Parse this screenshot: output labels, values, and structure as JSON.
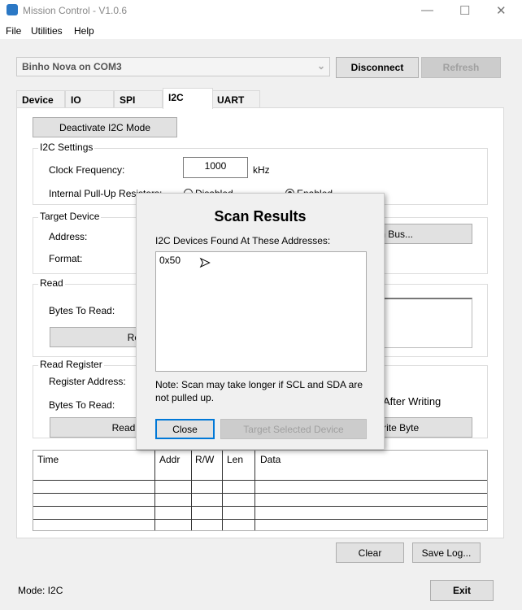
{
  "window": {
    "title": "Mission Control - V1.0.6",
    "icon": "app-robot-icon"
  },
  "menu": [
    "File",
    "Utilities",
    "Help"
  ],
  "device_combo": {
    "value": "Binho Nova on COM3"
  },
  "toolbar": {
    "disconnect": "Disconnect",
    "refresh": "Refresh"
  },
  "tabs": [
    "Device",
    "IO",
    "SPI",
    "I2C",
    "UART"
  ],
  "active_tab": "I2C",
  "i2c": {
    "deactivate": "Deactivate I2C Mode",
    "settings": {
      "title": "I2C Settings",
      "clock_label": "Clock Frequency:",
      "clock_value": "1000",
      "clock_unit": "kHz",
      "pullup_label": "Internal Pull-Up Resistors:",
      "disabled": "Disabled",
      "enabled": "Enabled",
      "pullup_selected": "Enabled"
    },
    "target": {
      "title": "Target Device",
      "address_label": "Address:",
      "format_label": "Format:",
      "scan_button": "Scan Bus..."
    },
    "read": {
      "title": "Read",
      "bytes_label": "Bytes To Read:",
      "read_button": "Read"
    },
    "read_register": {
      "title": "Read Register",
      "register_label": "Register Address:",
      "bytes_label": "Bytes To Read:",
      "read_button": "Read Register",
      "after_writing": "After Writing",
      "write_button": "Write Byte"
    }
  },
  "log": {
    "columns": [
      "Time",
      "Addr",
      "R/W",
      "Len",
      "Data"
    ]
  },
  "buttons": {
    "clear": "Clear",
    "save_log": "Save Log...",
    "exit": "Exit"
  },
  "status": "Mode: I2C",
  "dialog": {
    "title": "Scan Results",
    "label": "I2C Devices Found At These Addresses:",
    "addresses": [
      "0x50"
    ],
    "note": "Note: Scan may take longer if SCL and SDA are not pulled up.",
    "close": "Close",
    "target": "Target Selected Device"
  }
}
